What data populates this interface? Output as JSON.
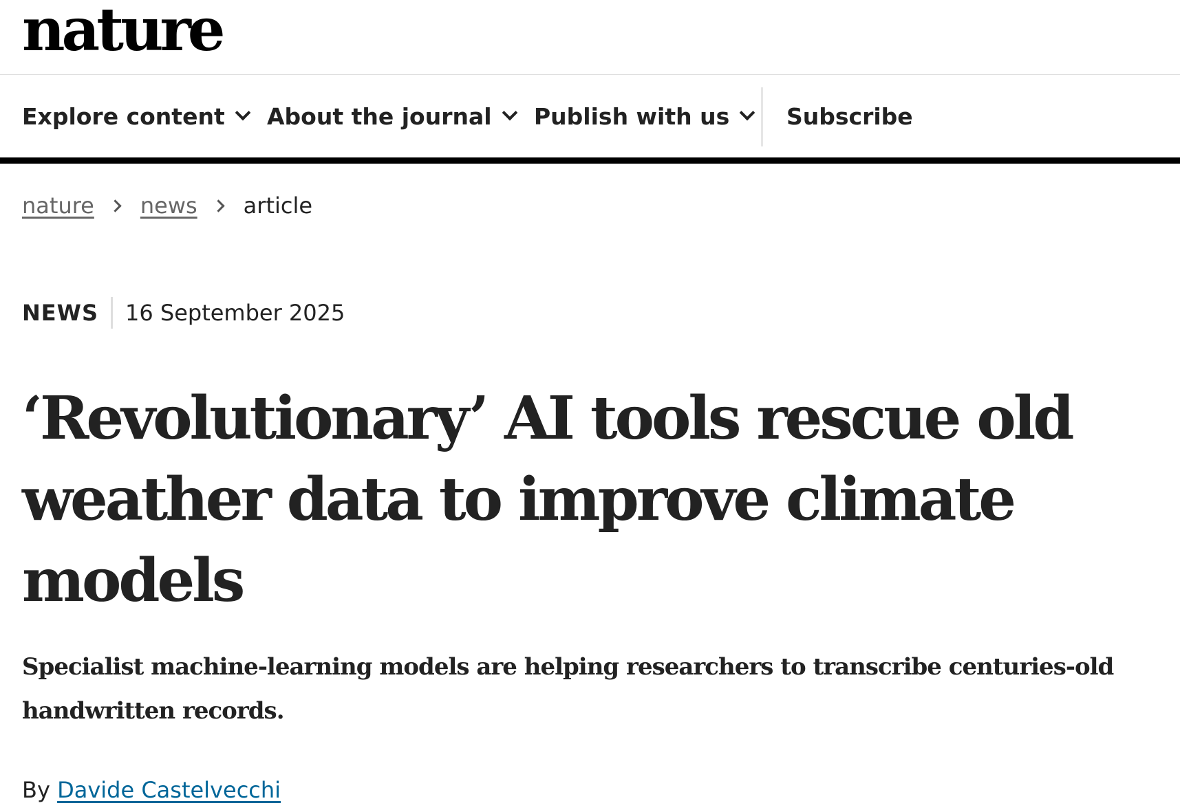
{
  "site": {
    "logo": "nature"
  },
  "nav": {
    "items": [
      {
        "label": "Explore content"
      },
      {
        "label": "About the journal"
      },
      {
        "label": "Publish with us"
      }
    ],
    "subscribe_label": "Subscribe"
  },
  "breadcrumb": {
    "items": [
      {
        "label": "nature",
        "link": true
      },
      {
        "label": "news",
        "link": true
      },
      {
        "label": "article",
        "link": false
      }
    ]
  },
  "article": {
    "type": "NEWS",
    "date": "16 September 2025",
    "title": "‘Revolutionary’ AI tools rescue old weather data to improve climate models",
    "standfirst": "Specialist machine-learning models are helping researchers to transcribe centuries-old handwritten records.",
    "byline_prefix": "By",
    "author": "Davide Castelvecchi"
  }
}
